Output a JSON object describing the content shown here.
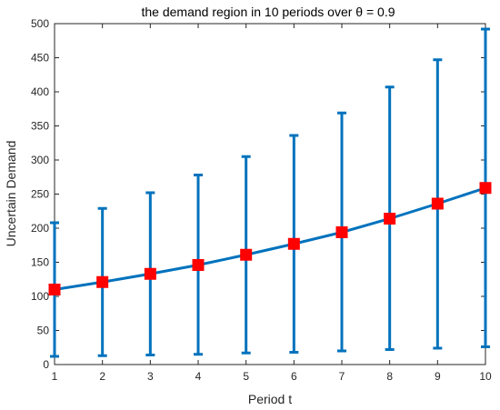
{
  "chart_data": {
    "type": "line",
    "title": "the demand region in 10 periods over θ = 0.9",
    "xlabel": "Period t",
    "ylabel": "Uncertain Demand",
    "xlim": [
      1,
      10
    ],
    "ylim": [
      0,
      500
    ],
    "x_ticks": [
      1,
      2,
      3,
      4,
      5,
      6,
      7,
      8,
      9,
      10
    ],
    "y_ticks": [
      0,
      50,
      100,
      150,
      200,
      250,
      300,
      350,
      400,
      450,
      500
    ],
    "grid": false,
    "legend": "none",
    "series": [
      {
        "x": [
          1,
          2,
          3,
          4,
          5,
          6,
          7,
          8,
          9,
          10
        ],
        "values": [
          110,
          121,
          133,
          146,
          161,
          177,
          194,
          214,
          236,
          259
        ],
        "lower": [
          12,
          13,
          14,
          15,
          17,
          18,
          20,
          22,
          24,
          26
        ],
        "upper": [
          208,
          229,
          252,
          278,
          305,
          336,
          369,
          407,
          447,
          492
        ]
      }
    ],
    "colors": {
      "line": "#0072BD",
      "marker": "#FF0000",
      "axis": "#262626"
    }
  }
}
